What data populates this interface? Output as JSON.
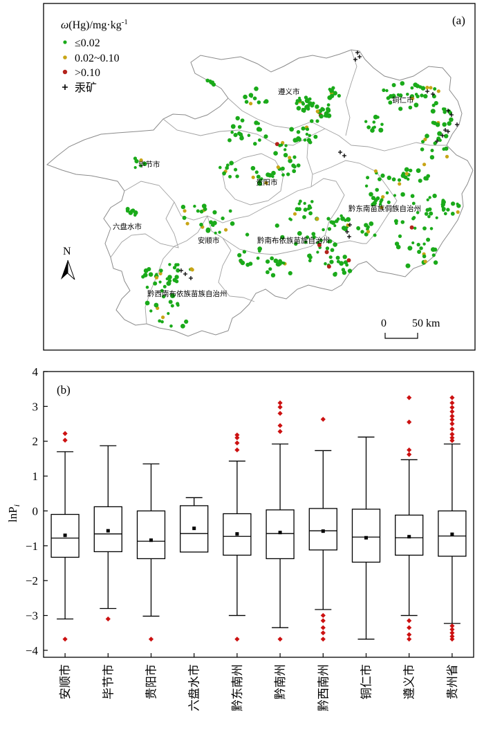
{
  "panel_a": {
    "label": "(a)",
    "legend": {
      "title_italic": "ω",
      "title_rest": "(Hg)/mg·kg",
      "title_sup": "-1",
      "items": [
        {
          "label": "≤0.02",
          "color": "#1aaa1a",
          "icon": "green-dot"
        },
        {
          "label": "0.02~0.10",
          "color": "#c8a516",
          "icon": "yellow-dot"
        },
        {
          "label": ">0.10",
          "color": "#b4231c",
          "icon": "red-dot"
        },
        {
          "label": "汞矿",
          "color": "#000000",
          "icon": "cross-marker"
        }
      ]
    },
    "cities": [
      "遵义市",
      "铜仁市",
      "毕节市",
      "贵阳市",
      "黔东南苗族侗族自治州",
      "六盘水市",
      "安顺市",
      "黔南布依族苗族自治州",
      "黔西南布依族苗族自治州"
    ],
    "north_label": "N",
    "scale": {
      "zero": "0",
      "end": "50 km"
    }
  },
  "chart_data": {
    "type": "box",
    "label": "(b)",
    "ylabel_main": "lnP",
    "ylabel_sub": "i",
    "ylim": [
      -4.2,
      4
    ],
    "yticks": [
      4,
      3,
      2,
      1,
      0,
      -1,
      -2,
      -3,
      -4
    ],
    "yticklabels": [
      "4",
      "3",
      "2",
      "1",
      "0",
      "−1",
      "−2",
      "−3",
      "−4"
    ],
    "outlier_color": "#cc1111",
    "categories": [
      "安顺市",
      "毕节市",
      "贵阳市",
      "六盘水市",
      "黔东南州",
      "黔南州",
      "黔西南州",
      "铜仁市",
      "遵义市",
      "贵州省"
    ],
    "boxes": [
      {
        "whisker_low": -3.1,
        "q1": -1.33,
        "median": -0.78,
        "q3": -0.1,
        "whisker_high": 1.7,
        "mean": -0.7,
        "outliers": [
          -3.68,
          2.03,
          2.22
        ]
      },
      {
        "whisker_low": -2.8,
        "q1": -1.17,
        "median": -0.66,
        "q3": 0.12,
        "whisker_high": 1.87,
        "mean": -0.57,
        "outliers": [
          -3.1
        ]
      },
      {
        "whisker_low": -3.02,
        "q1": -1.37,
        "median": -0.87,
        "q3": 0.0,
        "whisker_high": 1.35,
        "mean": -0.84,
        "outliers": [
          -3.68
        ]
      },
      {
        "whisker_low": -1.18,
        "q1": -1.18,
        "median": -0.65,
        "q3": 0.15,
        "whisker_high": 0.38,
        "mean": -0.5,
        "outliers": []
      },
      {
        "whisker_low": -3.0,
        "q1": -1.27,
        "median": -0.73,
        "q3": -0.08,
        "whisker_high": 1.43,
        "mean": -0.66,
        "outliers": [
          -3.68,
          1.75,
          1.95,
          2.1,
          2.18
        ]
      },
      {
        "whisker_low": -3.35,
        "q1": -1.37,
        "median": -0.65,
        "q3": 0.03,
        "whisker_high": 1.92,
        "mean": -0.62,
        "outliers": [
          -3.68,
          2.28,
          2.45,
          2.8,
          2.98,
          3.1
        ]
      },
      {
        "whisker_low": -2.83,
        "q1": -1.12,
        "median": -0.57,
        "q3": 0.07,
        "whisker_high": 1.73,
        "mean": -0.58,
        "outliers": [
          -3.0,
          -3.15,
          -3.35,
          -3.5,
          -3.68,
          2.63
        ]
      },
      {
        "whisker_low": -3.68,
        "q1": -1.47,
        "median": -0.75,
        "q3": 0.05,
        "whisker_high": 2.12,
        "mean": -0.77,
        "outliers": []
      },
      {
        "whisker_low": -3.0,
        "q1": -1.27,
        "median": -0.77,
        "q3": -0.12,
        "whisker_high": 1.47,
        "mean": -0.74,
        "outliers": [
          -3.15,
          -3.35,
          -3.55,
          -3.68,
          1.62,
          1.75,
          2.55,
          3.25
        ]
      },
      {
        "whisker_low": -3.23,
        "q1": -1.3,
        "median": -0.72,
        "q3": 0.0,
        "whisker_high": 1.92,
        "mean": -0.67,
        "outliers": [
          -3.3,
          -3.4,
          -3.5,
          -3.6,
          -3.68,
          2.02,
          2.1,
          2.2,
          2.35,
          2.5,
          2.62,
          2.72,
          2.85,
          2.97,
          3.1,
          3.25
        ]
      }
    ]
  }
}
